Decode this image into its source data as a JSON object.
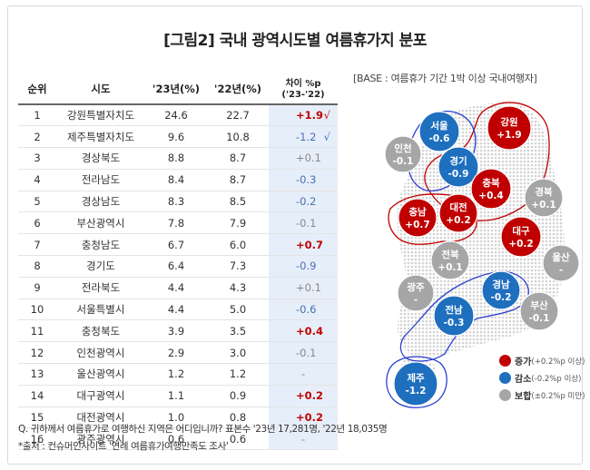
{
  "title": "[그림2] 국내 광역시도별 여름휴가지 분포",
  "base_note": "[BASE : 여름휴가 기간 1박 이상 국내여행자]",
  "table": {
    "headers": {
      "rank": "순위",
      "region": "시도",
      "y23": "'23년(%)",
      "y22": "'22년(%)",
      "diff_line1": "차이 %p",
      "diff_line2": "('23-'22)"
    },
    "rows": [
      {
        "rank": "1",
        "region": "강원특별자치도",
        "y23": "24.6",
        "y22": "22.7",
        "diff": "+1.9",
        "trend": "up",
        "check": "√"
      },
      {
        "rank": "2",
        "region": "제주특별자치도",
        "y23": "9.6",
        "y22": "10.8",
        "diff": "-1.2",
        "trend": "down",
        "check": "√"
      },
      {
        "rank": "3",
        "region": "경상북도",
        "y23": "8.8",
        "y22": "8.7",
        "diff": "+0.1",
        "trend": "flat",
        "check": ""
      },
      {
        "rank": "4",
        "region": "전라남도",
        "y23": "8.4",
        "y22": "8.7",
        "diff": "-0.3",
        "trend": "down",
        "check": ""
      },
      {
        "rank": "5",
        "region": "경상남도",
        "y23": "8.3",
        "y22": "8.5",
        "diff": "-0.2",
        "trend": "down",
        "check": ""
      },
      {
        "rank": "6",
        "region": "부산광역시",
        "y23": "7.8",
        "y22": "7.9",
        "diff": "-0.1",
        "trend": "flat",
        "check": ""
      },
      {
        "rank": "7",
        "region": "충청남도",
        "y23": "6.7",
        "y22": "6.0",
        "diff": "+0.7",
        "trend": "up",
        "check": ""
      },
      {
        "rank": "8",
        "region": "경기도",
        "y23": "6.4",
        "y22": "7.3",
        "diff": "-0.9",
        "trend": "down",
        "check": ""
      },
      {
        "rank": "9",
        "region": "전라북도",
        "y23": "4.4",
        "y22": "4.3",
        "diff": "+0.1",
        "trend": "flat",
        "check": ""
      },
      {
        "rank": "10",
        "region": "서울특별시",
        "y23": "4.4",
        "y22": "5.0",
        "diff": "-0.6",
        "trend": "down",
        "check": ""
      },
      {
        "rank": "11",
        "region": "충청북도",
        "y23": "3.9",
        "y22": "3.5",
        "diff": "+0.4",
        "trend": "up",
        "check": ""
      },
      {
        "rank": "12",
        "region": "인천광역시",
        "y23": "2.9",
        "y22": "3.0",
        "diff": "-0.1",
        "trend": "flat",
        "check": ""
      },
      {
        "rank": "13",
        "region": "울산광역시",
        "y23": "1.2",
        "y22": "1.2",
        "diff": "-",
        "trend": "flat",
        "check": ""
      },
      {
        "rank": "14",
        "region": "대구광역시",
        "y23": "1.1",
        "y22": "0.9",
        "diff": "+0.2",
        "trend": "up",
        "check": ""
      },
      {
        "rank": "15",
        "region": "대전광역시",
        "y23": "1.0",
        "y22": "0.8",
        "diff": "+0.2",
        "trend": "up",
        "check": ""
      },
      {
        "rank": "16",
        "region": "광주광역시",
        "y23": "0.6",
        "y22": "0.6",
        "diff": "-",
        "trend": "flat",
        "check": ""
      }
    ]
  },
  "map": {
    "bubbles": [
      {
        "name": "서울",
        "value": "-0.6",
        "trend": "down"
      },
      {
        "name": "인천",
        "value": "-0.1",
        "trend": "flat"
      },
      {
        "name": "경기",
        "value": "-0.9",
        "trend": "down"
      },
      {
        "name": "강원",
        "value": "+1.9",
        "trend": "up"
      },
      {
        "name": "충북",
        "value": "+0.4",
        "trend": "up"
      },
      {
        "name": "경북",
        "value": "+0.1",
        "trend": "flat"
      },
      {
        "name": "충남",
        "value": "+0.7",
        "trend": "up"
      },
      {
        "name": "대전",
        "value": "+0.2",
        "trend": "up"
      },
      {
        "name": "대구",
        "value": "+0.2",
        "trend": "up"
      },
      {
        "name": "전북",
        "value": "+0.1",
        "trend": "flat"
      },
      {
        "name": "울산",
        "value": "-",
        "trend": "flat"
      },
      {
        "name": "광주",
        "value": "-",
        "trend": "flat"
      },
      {
        "name": "경남",
        "value": "-0.2",
        "trend": "down"
      },
      {
        "name": "부산",
        "value": "-0.1",
        "trend": "flat"
      },
      {
        "name": "전남",
        "value": "-0.3",
        "trend": "down"
      },
      {
        "name": "제주",
        "value": "-1.2",
        "trend": "down"
      }
    ]
  },
  "legend": [
    {
      "name": "증가",
      "range": "(+0.2%p 이상)",
      "color": "#c00000"
    },
    {
      "name": "감소",
      "range": "(-0.2%p 이상)",
      "color": "#1f6fbf"
    },
    {
      "name": "보합",
      "range": "(±0.2%p 미만)",
      "color": "#a6a6a6"
    }
  ],
  "colors": {
    "up": "#c00000",
    "down": "#1f6fbf",
    "flat": "#a6a6a6",
    "up_outline": "#c00000",
    "down_outline": "#2a3fd0",
    "highlight": "#e6eef9"
  },
  "footnotes": {
    "question": "Q. 귀하께서 여름휴가로 여행하신 지역은 어디입니까? 표본수 '23년 17,281명, '22년 18,035명",
    "source": "*출처 : 컨슈머인사이트 '연례 여름휴가여행만족도 조사'"
  },
  "chart_data": {
    "type": "table",
    "title": "[그림2] 국내 광역시도별 여름휴가지 분포",
    "columns": [
      "순위",
      "시도",
      "'23년(%)",
      "'22년(%)",
      "차이 %p ('23-'22)"
    ],
    "rows": [
      [
        1,
        "강원특별자치도",
        24.6,
        22.7,
        1.9
      ],
      [
        2,
        "제주특별자치도",
        9.6,
        10.8,
        -1.2
      ],
      [
        3,
        "경상북도",
        8.8,
        8.7,
        0.1
      ],
      [
        4,
        "전라남도",
        8.4,
        8.7,
        -0.3
      ],
      [
        5,
        "경상남도",
        8.3,
        8.5,
        -0.2
      ],
      [
        6,
        "부산광역시",
        7.8,
        7.9,
        -0.1
      ],
      [
        7,
        "충청남도",
        6.7,
        6.0,
        0.7
      ],
      [
        8,
        "경기도",
        6.4,
        7.3,
        -0.9
      ],
      [
        9,
        "전라북도",
        4.4,
        4.3,
        0.1
      ],
      [
        10,
        "서울특별시",
        4.4,
        5.0,
        -0.6
      ],
      [
        11,
        "충청북도",
        3.9,
        3.5,
        0.4
      ],
      [
        12,
        "인천광역시",
        2.9,
        3.0,
        -0.1
      ],
      [
        13,
        "울산광역시",
        1.2,
        1.2,
        0.0
      ],
      [
        14,
        "대구광역시",
        1.1,
        0.9,
        0.2
      ],
      [
        15,
        "대전광역시",
        1.0,
        0.8,
        0.2
      ],
      [
        16,
        "광주광역시",
        0.6,
        0.6,
        0.0
      ]
    ]
  }
}
